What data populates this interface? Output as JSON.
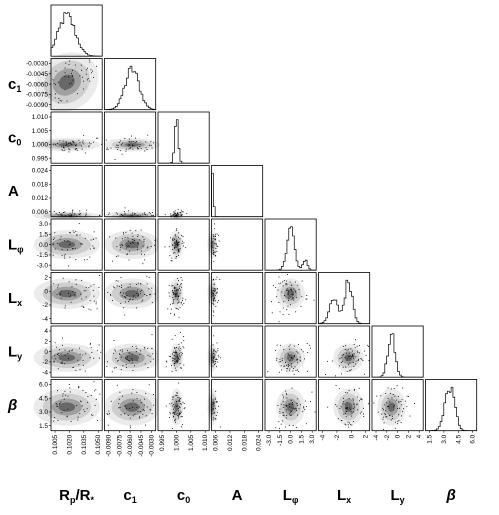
{
  "chart_data": {
    "type": "corner",
    "description": "",
    "params": [
      {
        "key": "rp",
        "symbol": "R",
        "sub": "p",
        "suffix": "/R",
        "suffix_sub": "*",
        "italic": false,
        "range": [
          0.1005,
          0.106
        ],
        "ticks": [
          "0.1005",
          "0.1020",
          "0.1035",
          "0.1050"
        ],
        "hist_peak": 0.1022,
        "hist_width": 0.0009
      },
      {
        "key": "c1",
        "symbol": "c",
        "sub": "1",
        "italic": false,
        "range": [
          -0.009,
          -0.0025
        ],
        "ticks": [
          "-0.0090",
          "-0.0075",
          "-0.0060",
          "-0.0045",
          "-0.0030"
        ],
        "hist_peak": -0.0055,
        "hist_width": 0.0009
      },
      {
        "key": "c0",
        "symbol": "c",
        "sub": "0",
        "italic": false,
        "range": [
          0.994,
          1.012
        ],
        "ticks": [
          "0.995",
          "1.000",
          "1.005",
          "1.010"
        ],
        "hist_peak": 1.0005,
        "hist_width": 0.0006
      },
      {
        "key": "A",
        "symbol": "A",
        "sub": "",
        "italic": false,
        "range": [
          0.0,
          0.028
        ],
        "ticks": [
          "0.006",
          "0.012",
          "0.018",
          "0.024"
        ],
        "hist_peak": 0.0005,
        "hist_width": 0.0006
      },
      {
        "key": "Lphi",
        "symbol": "L",
        "sub": "φ",
        "italic": false,
        "range": [
          -3.5,
          3.5
        ],
        "ticks": [
          "-3.0",
          "-1.5",
          "0.0",
          "1.5",
          "3.0"
        ],
        "hist_peak": 0.0,
        "hist_width": 0.5
      },
      {
        "key": "Lx",
        "symbol": "L",
        "sub": "x",
        "italic": false,
        "range": [
          -5.0,
          3.0
        ],
        "ticks": [
          "-4",
          "-2",
          "0",
          "2"
        ],
        "hist_peak": -0.3,
        "hist_width": 0.6
      },
      {
        "key": "Ly",
        "symbol": "L",
        "sub": "y",
        "italic": false,
        "range": [
          -5.0,
          5.0
        ],
        "ticks": [
          "-4",
          "-2",
          "0",
          "2",
          "4"
        ],
        "hist_peak": -1.2,
        "hist_width": 0.7
      },
      {
        "key": "beta",
        "symbol": "β",
        "sub": "",
        "italic": true,
        "range": [
          0.5,
          7.0
        ],
        "ticks": [
          "1.5",
          "3.0",
          "4.5",
          "6.0"
        ],
        "hist_peak": 3.5,
        "hist_width": 0.6
      }
    ],
    "grid": false,
    "legend": "none"
  }
}
